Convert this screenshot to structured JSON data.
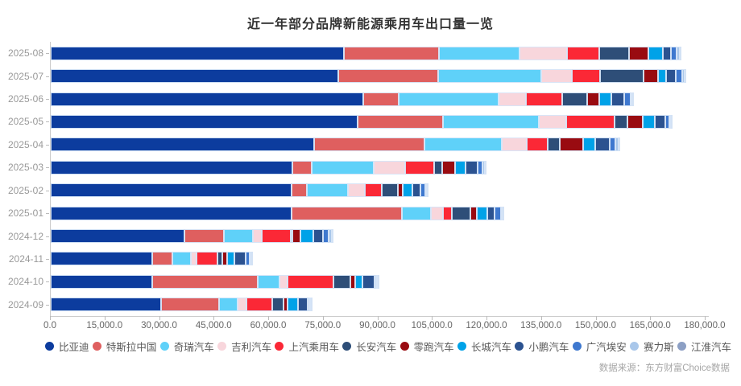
{
  "title": "近一年部分品牌新能源乘用车出口量一览",
  "source": "数据来源：东方财富Choice数据",
  "chart_data": {
    "type": "bar",
    "orientation": "horizontal",
    "stacked": true,
    "grid": false,
    "legend_position": "bottom",
    "categories": [
      "2025-08",
      "2025-07",
      "2025-06",
      "2025-05",
      "2025-04",
      "2025-03",
      "2025-02",
      "2025-01",
      "2024-12",
      "2024-11",
      "2024-10",
      "2024-09"
    ],
    "x_axis": {
      "min": 0,
      "max": 180000,
      "tick_step": 15000,
      "tick_labels": [
        "0.0",
        "15,000.0",
        "30,000.0",
        "45,000.0",
        "60,000.0",
        "75,000.0",
        "90,000.0",
        "105,000.0",
        "120,000.0",
        "135,000.0",
        "150,000.0",
        "165,000.0",
        "180,000.0"
      ]
    },
    "series": [
      {
        "id": "byd",
        "name": "比亚迪",
        "color": "#0C3C9E",
        "values": [
          80500,
          79000,
          86000,
          84300,
          72300,
          66400,
          66200,
          66300,
          36800,
          28000,
          28000,
          30400
        ]
      },
      {
        "id": "tesla-china",
        "name": "特斯拉中国",
        "color": "#DF5F5F",
        "values": [
          26300,
          27500,
          9700,
          23600,
          30400,
          5300,
          4200,
          30200,
          10800,
          5500,
          29000,
          15900
        ]
      },
      {
        "id": "chery",
        "name": "奇瑞汽车",
        "color": "#5FD1F9",
        "values": [
          22000,
          28300,
          27500,
          26300,
          21300,
          17100,
          11300,
          8000,
          8000,
          5000,
          5800,
          5100
        ]
      },
      {
        "id": "geely",
        "name": "吉利汽车",
        "color": "#F8D6DC",
        "values": [
          13200,
          8500,
          7500,
          7600,
          6900,
          8600,
          4700,
          3300,
          2400,
          1500,
          2400,
          2400
        ]
      },
      {
        "id": "saic",
        "name": "上汽乘用车",
        "color": "#FB2836",
        "values": [
          8700,
          7800,
          9800,
          13200,
          5800,
          8100,
          4700,
          2500,
          8000,
          5800,
          12500,
          7200
        ]
      },
      {
        "id": "changan",
        "name": "长安汽车",
        "color": "#2E4E78",
        "values": [
          8300,
          11800,
          6900,
          3600,
          3300,
          2200,
          4400,
          5100,
          400,
          1400,
          4600,
          2900
        ]
      },
      {
        "id": "leapmotor",
        "name": "零跑汽车",
        "color": "#990B11",
        "values": [
          5400,
          4100,
          3300,
          4100,
          6400,
          3500,
          1300,
          1800,
          2200,
          1200,
          1500,
          1100
        ]
      },
      {
        "id": "great-wall",
        "name": "长城汽车",
        "color": "#00A2E8",
        "values": [
          3800,
          2200,
          3400,
          3300,
          3300,
          2900,
          2700,
          2900,
          3500,
          2000,
          1800,
          2900
        ]
      },
      {
        "id": "xpeng",
        "name": "小鹏汽车",
        "color": "#2B5290",
        "values": [
          2300,
          2700,
          3500,
          2900,
          4000,
          3300,
          2200,
          1800,
          2700,
          3300,
          3500,
          2700
        ]
      },
      {
        "id": "gac-aion",
        "name": "广汽埃安",
        "color": "#3E78CF",
        "values": [
          1600,
          1600,
          1800,
          1100,
          1500,
          1300,
          1200,
          1800,
          1500,
          1100,
          300,
          200
        ]
      },
      {
        "id": "seres",
        "name": "赛力斯",
        "color": "#A9C7EA",
        "values": [
          900,
          800,
          500,
          400,
          1000,
          600,
          400,
          500,
          900,
          300,
          200,
          100
        ]
      },
      {
        "id": "jac",
        "name": "江淮汽车",
        "color": "#8C9FC4",
        "values": [
          300,
          300,
          200,
          200,
          300,
          300,
          200,
          200,
          500,
          200,
          100,
          100
        ]
      }
    ]
  }
}
